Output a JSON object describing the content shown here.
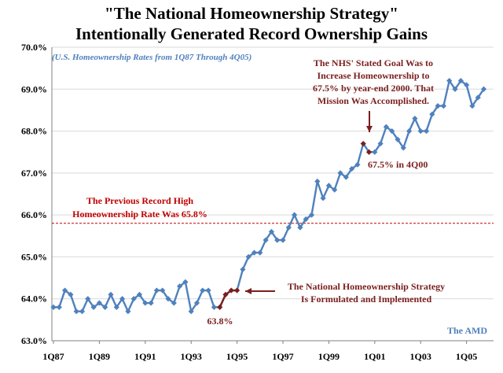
{
  "chart_data": {
    "type": "line",
    "title_lines": [
      "\"The National Homeownership Strategy\"",
      "Intentionally Generated Record Ownership Gains"
    ],
    "subtitle": "(U.S. Homeownership Rates from 1Q87 Through 4Q05)",
    "ylim": [
      63.0,
      70.0
    ],
    "y_ticks": [
      "63.0%",
      "64.0%",
      "65.0%",
      "66.0%",
      "67.0%",
      "68.0%",
      "69.0%",
      "70.0%"
    ],
    "y_tick_values": [
      63,
      64,
      65,
      66,
      67,
      68,
      69,
      70
    ],
    "x_ticks": [
      "1Q87",
      "1Q89",
      "1Q91",
      "1Q93",
      "1Q95",
      "1Q97",
      "1Q99",
      "1Q01",
      "1Q03",
      "1Q05"
    ],
    "x_tick_indices": [
      0,
      8,
      16,
      24,
      32,
      40,
      48,
      56,
      64,
      72
    ],
    "grid": "horizontal",
    "series": [
      {
        "color": "#4f81bd",
        "highlight_color": "#7b1e1e",
        "highlight_indices": [
          29,
          30,
          31,
          32,
          54,
          55
        ],
        "x": [
          "1Q87",
          "2Q87",
          "3Q87",
          "4Q87",
          "1Q88",
          "2Q88",
          "3Q88",
          "4Q88",
          "1Q89",
          "2Q89",
          "3Q89",
          "4Q89",
          "1Q90",
          "2Q90",
          "3Q90",
          "4Q90",
          "1Q91",
          "2Q91",
          "3Q91",
          "4Q91",
          "1Q92",
          "2Q92",
          "3Q92",
          "4Q92",
          "1Q93",
          "2Q93",
          "3Q93",
          "4Q93",
          "1Q94",
          "2Q94",
          "3Q94",
          "4Q94",
          "1Q95",
          "2Q95",
          "3Q95",
          "4Q95",
          "1Q96",
          "2Q96",
          "3Q96",
          "4Q96",
          "1Q97",
          "2Q97",
          "3Q97",
          "4Q97",
          "1Q98",
          "2Q98",
          "3Q98",
          "4Q98",
          "1Q99",
          "2Q99",
          "3Q99",
          "4Q99",
          "1Q00",
          "2Q00",
          "3Q00",
          "4Q00",
          "1Q01",
          "2Q01",
          "3Q01",
          "4Q01",
          "1Q02",
          "2Q02",
          "3Q02",
          "4Q02",
          "1Q03",
          "2Q03",
          "3Q03",
          "4Q03",
          "1Q04",
          "2Q04",
          "3Q04",
          "4Q04",
          "1Q05",
          "2Q05",
          "3Q05",
          "4Q05"
        ],
        "values": [
          63.8,
          63.8,
          64.2,
          64.1,
          63.7,
          63.7,
          64.0,
          63.8,
          63.9,
          63.8,
          64.1,
          63.8,
          64.0,
          63.7,
          64.0,
          64.1,
          63.9,
          63.9,
          64.2,
          64.2,
          64.0,
          63.9,
          64.3,
          64.4,
          63.7,
          63.9,
          64.2,
          64.2,
          63.8,
          63.8,
          64.1,
          64.2,
          64.2,
          64.7,
          65.0,
          65.1,
          65.1,
          65.4,
          65.6,
          65.4,
          65.4,
          65.7,
          66.0,
          65.7,
          65.9,
          66.0,
          66.8,
          66.4,
          66.7,
          66.6,
          67.0,
          66.9,
          67.1,
          67.2,
          67.7,
          67.5,
          67.5,
          67.7,
          68.1,
          68.0,
          67.8,
          67.6,
          68.0,
          68.3,
          68.0,
          68.0,
          68.4,
          68.6,
          68.6,
          69.2,
          69.0,
          69.2,
          69.1,
          68.6,
          68.8,
          69.0
        ]
      }
    ],
    "reference_line": {
      "value": 65.8,
      "color": "#c00000"
    },
    "annotations": {
      "previous_record": [
        "The Previous Record High",
        "Homeownership Rate Was 65.8%"
      ],
      "nhs_goal": [
        "The NHS' Stated Goal Was to",
        "Increase Homeownership to",
        "67.5% by year-end 2000.  That",
        "Mission Was Accomplished."
      ],
      "label_4q00": "67.5% in 4Q00",
      "nhs_formulated": [
        "The National Homeownership Strategy",
        "Is Formulated and Implemented"
      ],
      "label_low": "63.8%",
      "credit": "The AMD"
    }
  }
}
